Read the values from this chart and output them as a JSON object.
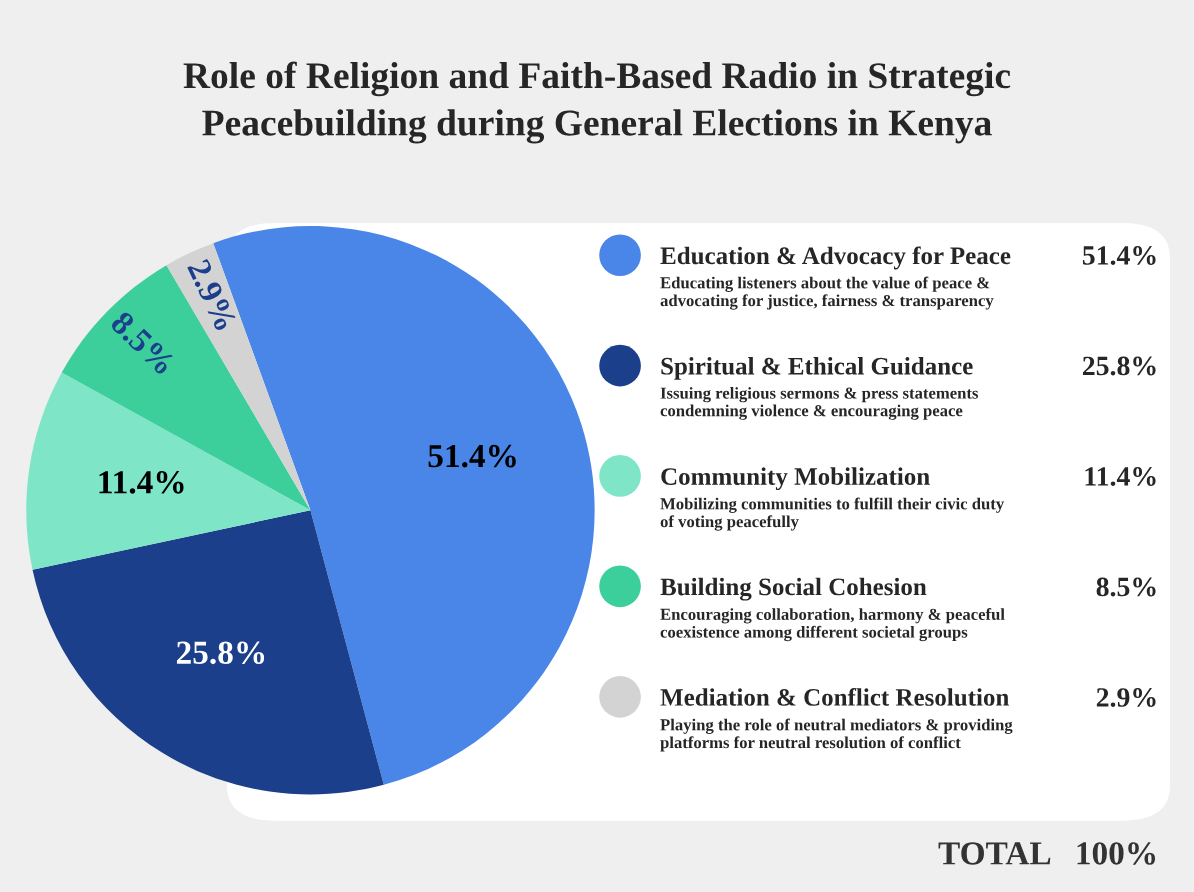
{
  "chart_data": {
    "type": "pie",
    "title": "Role of Religion and Faith-Based Radio in Strategic\nPeacebuilding during General Elections in Kenya",
    "categories": [
      "Education & Advocacy for Peace",
      "Spiritual & Ethical Guidance",
      "Community Mobilization",
      "Building Social Cohesion",
      "Mediation & Conflict Resolution"
    ],
    "values": [
      51.4,
      25.8,
      11.4,
      8.5,
      2.9
    ],
    "colors": [
      "#4a86e8",
      "#1b3f8b",
      "#7ee6c6",
      "#3ccf9c",
      "#d3d3d3"
    ],
    "value_labels": [
      "51.4%",
      "25.8%",
      "11.4%",
      "8.5%",
      "2.9%"
    ],
    "annotations": [
      "Educating listeners about the value of peace &\nadvocating for justice, fairness & transparency",
      "Issuing religious sermons & press statements\ncondemning violence & encouraging peace",
      "Mobilizing communities to fulfill their civic duty\nof voting peacefully",
      "Encouraging collaboration, harmony & peaceful\ncoexistence among different societal groups",
      "Playing the role of neutral mediators & providing\nplatforms for neutral resolution of conflict",
      "TOTAL   100%"
    ],
    "legend": "right"
  }
}
